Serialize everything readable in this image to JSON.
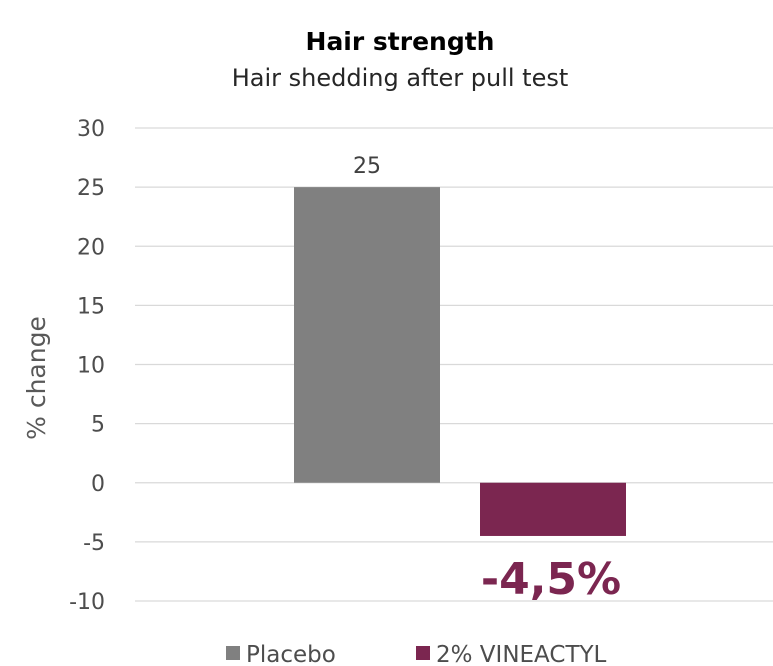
{
  "chart_data": {
    "type": "bar",
    "title": "Hair strength",
    "subtitle": "Hair shedding after pull test",
    "xlabel": "",
    "ylabel": "% change",
    "ylim": [
      -10,
      30
    ],
    "yticks": [
      30,
      25,
      20,
      15,
      10,
      5,
      0,
      -5,
      -10
    ],
    "grid": true,
    "legend_position": "bottom",
    "series": [
      {
        "name": "Placebo",
        "values": [
          25
        ],
        "color": "#808080",
        "data_label": "25"
      },
      {
        "name": "2% VINEACTYL",
        "values": [
          -4.5
        ],
        "color": "#7b2650",
        "data_label": "-4,5%"
      }
    ]
  }
}
